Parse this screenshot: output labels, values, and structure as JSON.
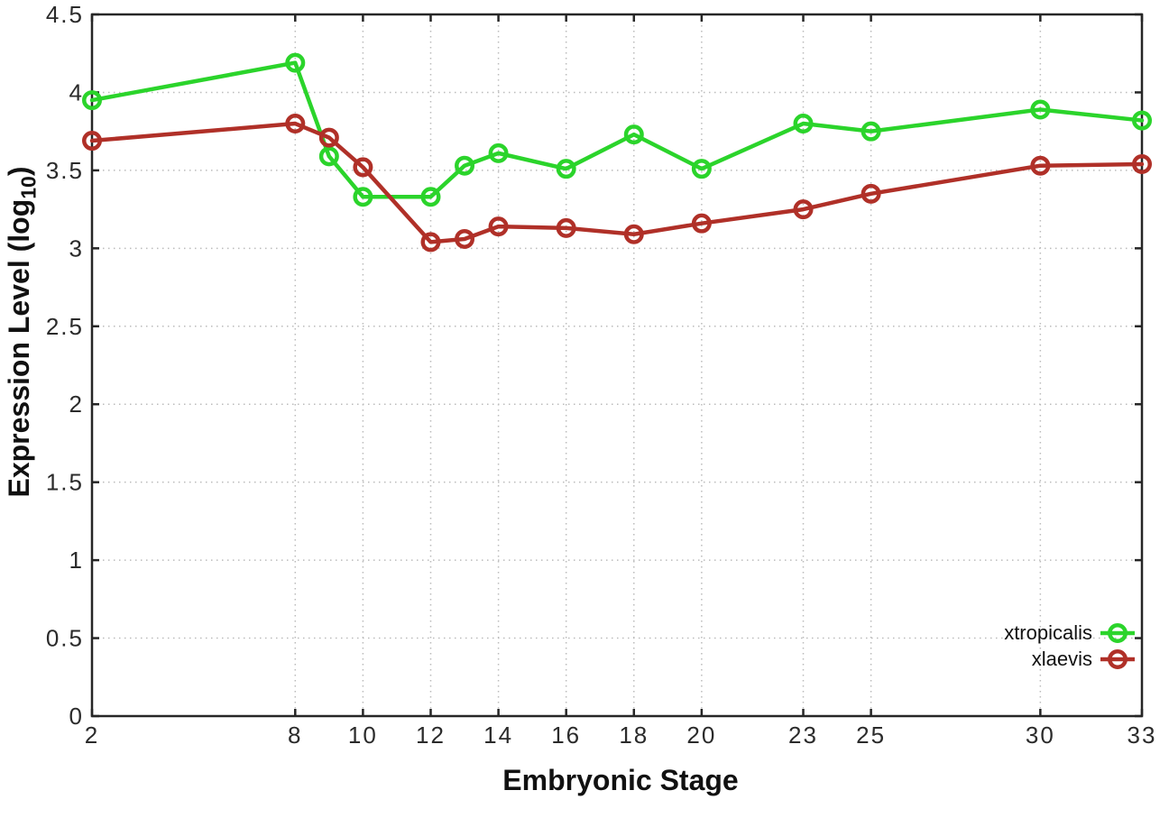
{
  "chart_data": {
    "type": "line",
    "title": "",
    "xlabel": "Embryonic Stage",
    "ylabel": {
      "prefix": "Expression Level (log",
      "sub": "10",
      "suffix": ")"
    },
    "x": [
      2,
      8,
      9,
      10,
      12,
      13,
      14,
      16,
      18,
      20,
      23,
      25,
      30,
      33
    ],
    "x_tick_labels": [
      2,
      8,
      10,
      12,
      14,
      16,
      18,
      20,
      23,
      25,
      30,
      33
    ],
    "y_ticks": [
      0,
      0.5,
      1,
      1.5,
      2,
      2.5,
      3,
      3.5,
      4,
      4.5
    ],
    "xlim": [
      2,
      33
    ],
    "ylim": [
      0,
      4.5
    ],
    "grid": true,
    "legend_position": "bottom-right",
    "marker": "open-circle",
    "series": [
      {
        "name": "xtropicalis",
        "color": "#2bd42b",
        "values": [
          3.95,
          4.19,
          3.59,
          3.33,
          3.33,
          3.53,
          3.61,
          3.51,
          3.73,
          3.51,
          3.8,
          3.75,
          3.89,
          3.82
        ]
      },
      {
        "name": "xlaevis",
        "color": "#b03028",
        "values": [
          3.69,
          3.8,
          3.71,
          3.52,
          3.04,
          3.06,
          3.14,
          3.13,
          3.09,
          3.16,
          3.25,
          3.35,
          3.53,
          3.54
        ]
      }
    ]
  }
}
